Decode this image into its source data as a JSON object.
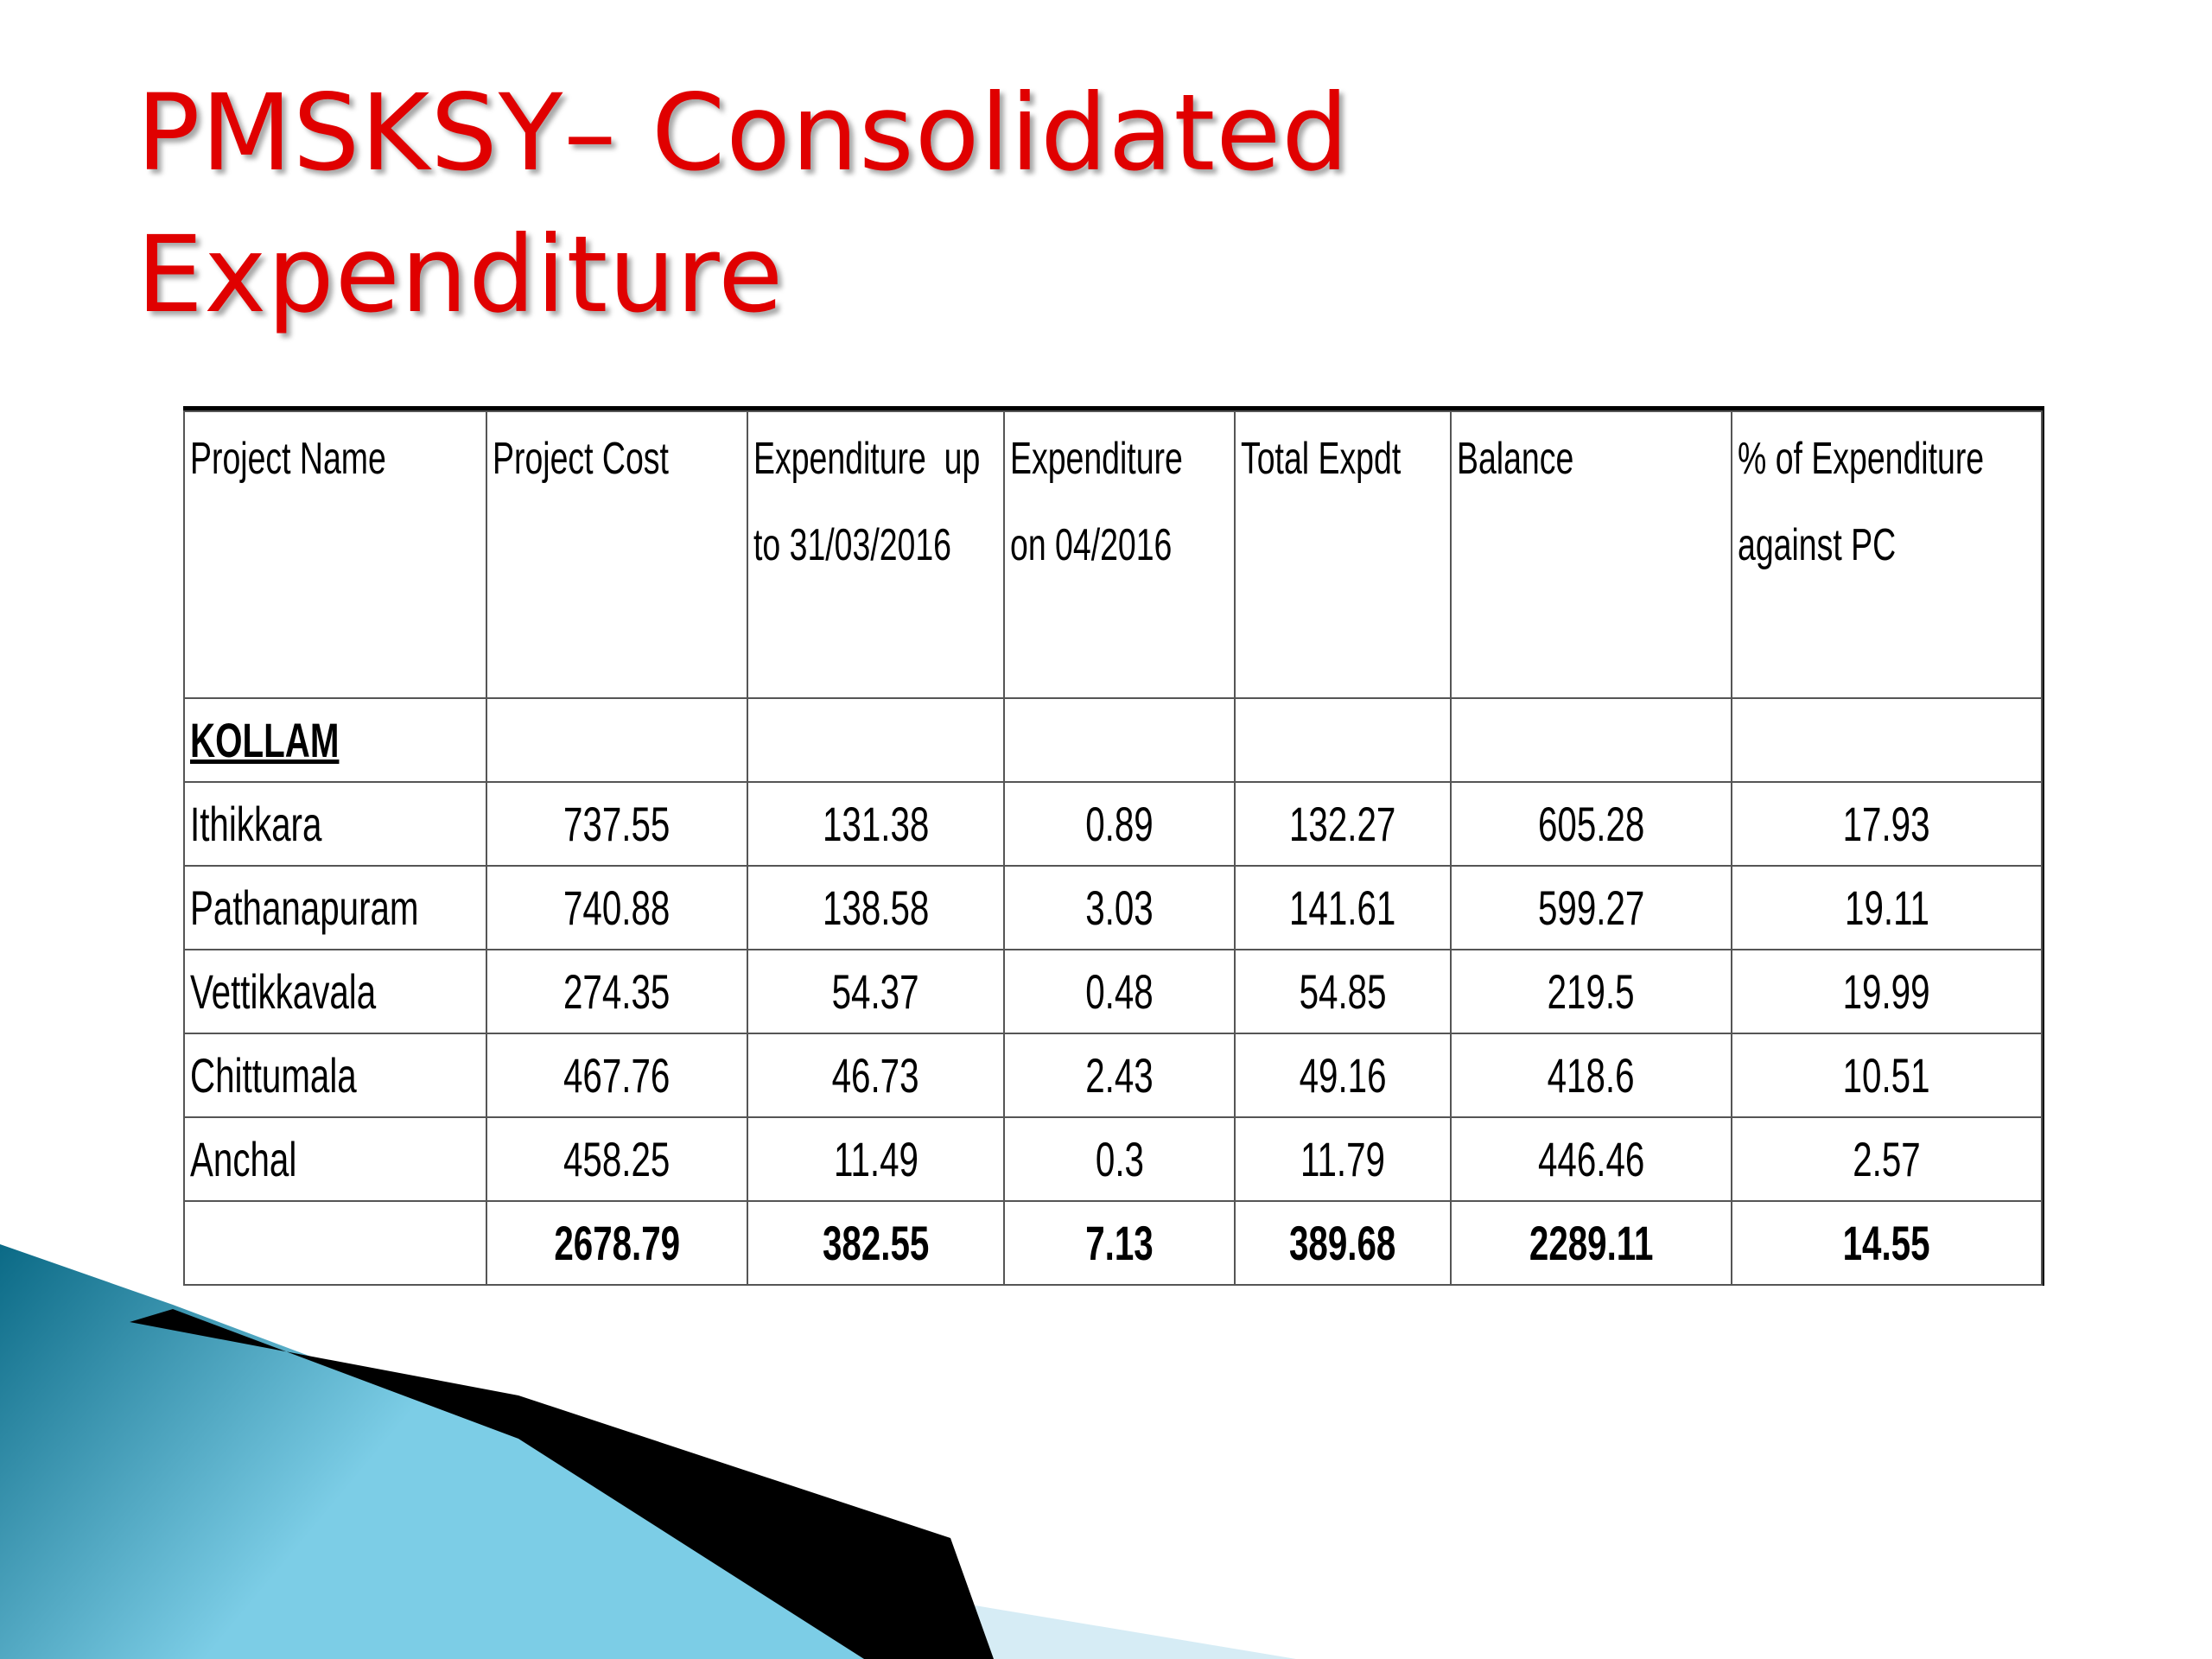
{
  "slide": {
    "title_line1": "PMSKSY– Consolidated",
    "title_line2": "Expenditure",
    "title_color": "#e00000"
  },
  "table": {
    "headers": [
      [
        "Project Name"
      ],
      [
        "Project Cost"
      ],
      [
        "Expenditure  up",
        "to 31/03/2016"
      ],
      [
        "Expenditure",
        "on 04/2016"
      ],
      [
        "Total Expdt"
      ],
      [
        "Balance"
      ],
      [
        "% of Expenditure",
        "against PC"
      ]
    ],
    "section": "KOLLAM",
    "rows": [
      [
        "Ithikkara",
        "737.55",
        "131.38",
        "0.89",
        "132.27",
        "605.28",
        "17.93"
      ],
      [
        "Pathanapuram",
        "740.88",
        "138.58",
        "3.03",
        "141.61",
        "599.27",
        "19.11"
      ],
      [
        "Vettikkavala",
        "274.35",
        "54.37",
        "0.48",
        "54.85",
        "219.5",
        "19.99"
      ],
      [
        "Chittumala",
        "467.76",
        "46.73",
        "2.43",
        "49.16",
        "418.6",
        "10.51"
      ],
      [
        "Anchal",
        "458.25",
        "11.49",
        "0.3",
        "11.79",
        "446.46",
        "2.57"
      ]
    ],
    "total": [
      "",
      "2678.79",
      "382.55",
      "7.13",
      "389.68",
      "2289.11",
      "14.55"
    ]
  },
  "decoration": {
    "teal_dark": "#0b6a86",
    "teal_light": "#7ccde6",
    "pale": "#d6ecf5",
    "black": "#000000"
  }
}
